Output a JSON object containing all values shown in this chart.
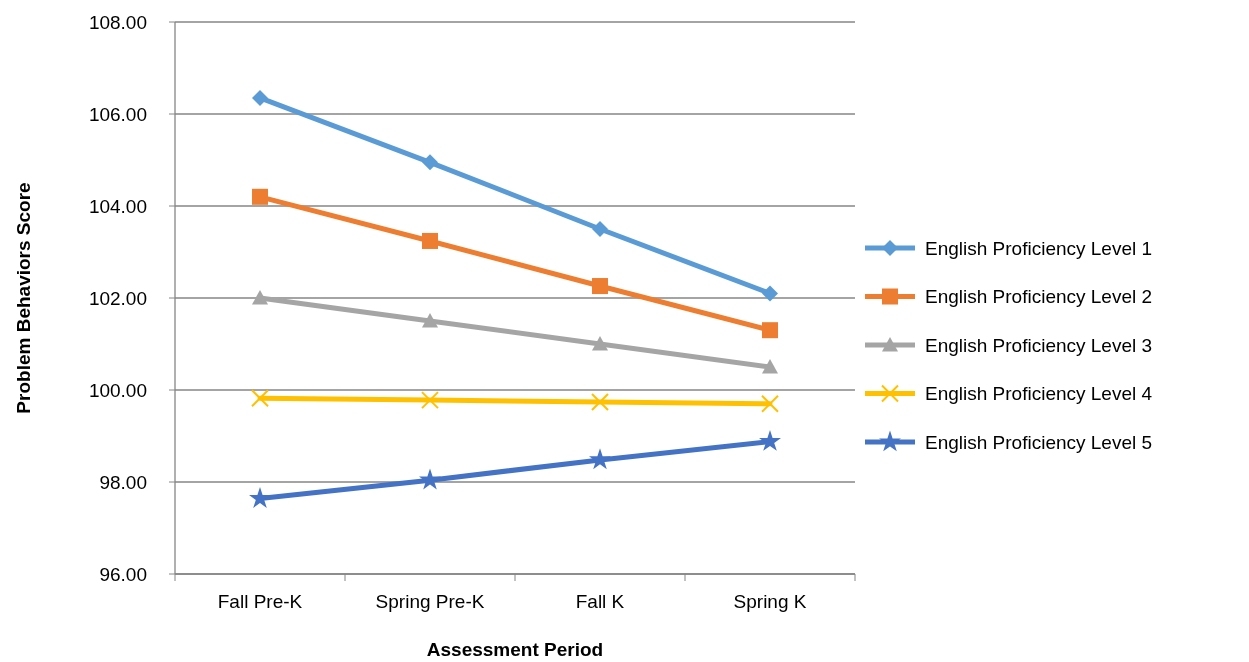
{
  "chart_data": {
    "type": "line",
    "xlabel": "Assessment Period",
    "ylabel": "Problem Behaviors Score",
    "categories": [
      "Fall Pre-K",
      "Spring Pre-K",
      "Fall K",
      "Spring K"
    ],
    "ylim": [
      96,
      108
    ],
    "yticks": [
      {
        "value": 96,
        "label": "96.00"
      },
      {
        "value": 98,
        "label": "98.00"
      },
      {
        "value": 100,
        "label": "100.00"
      },
      {
        "value": 102,
        "label": "102.00"
      },
      {
        "value": 104,
        "label": "104.00"
      },
      {
        "value": 106,
        "label": "106.00"
      },
      {
        "value": 108,
        "label": "108.00"
      }
    ],
    "grid": "y",
    "legend": "right",
    "series": [
      {
        "name": "English Proficiency Level 1",
        "color": "#5b9bd5",
        "marker": "diamond",
        "values": [
          106.35,
          104.95,
          103.5,
          102.1
        ]
      },
      {
        "name": "English Proficiency Level 2",
        "color": "#ed7d31",
        "marker": "square",
        "values": [
          104.2,
          103.24,
          102.26,
          101.3
        ]
      },
      {
        "name": "English Proficiency Level 3",
        "color": "#a5a5a5",
        "marker": "triangle",
        "values": [
          102.0,
          101.5,
          101.0,
          100.5
        ]
      },
      {
        "name": "English Proficiency Level 4",
        "color": "#ffc000",
        "marker": "cross",
        "values": [
          99.82,
          99.78,
          99.74,
          99.7
        ]
      },
      {
        "name": "English Proficiency Level 5",
        "color": "#4472c4",
        "marker": "star",
        "values": [
          97.64,
          98.04,
          98.48,
          98.88
        ]
      }
    ]
  }
}
